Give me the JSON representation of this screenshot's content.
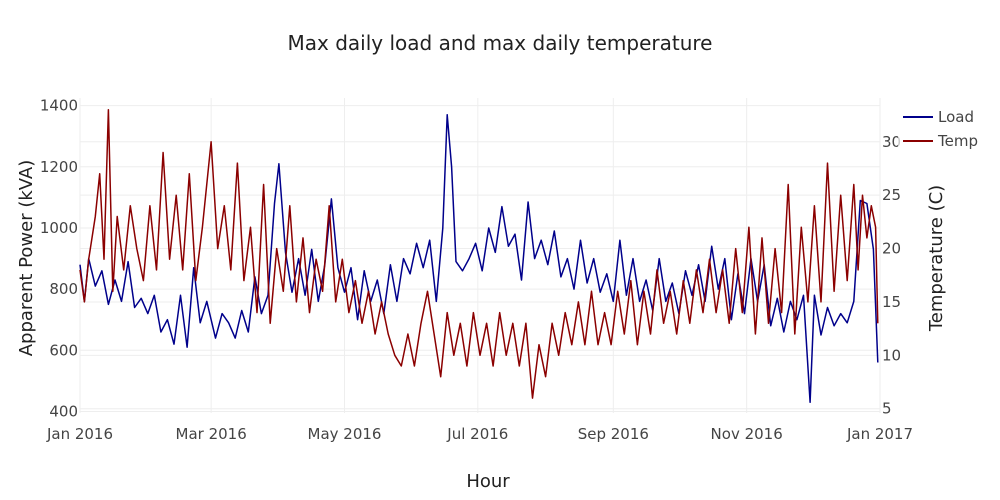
{
  "chart_data": {
    "type": "line",
    "title": "Max daily load and max daily temperature",
    "xlabel": "Hour",
    "ylabel": "Apparent Power (kVA)",
    "y2label": "Temperature (C)",
    "x_range": [
      "2016-01-01",
      "2017-01-01"
    ],
    "x_ticks": [
      "Jan 2016",
      "Mar 2016",
      "May 2016",
      "Jul 2016",
      "Sep 2016",
      "Nov 2016",
      "Jan 2017"
    ],
    "x_tick_dates": [
      "2016-01-01",
      "2016-03-01",
      "2016-05-01",
      "2016-07-01",
      "2016-09-01",
      "2016-11-01",
      "2017-01-01"
    ],
    "ylim": [
      395,
      1425
    ],
    "y_ticks": [
      400,
      600,
      800,
      1000,
      1200,
      1400
    ],
    "y2lim": [
      4.6,
      34.1
    ],
    "y2_ticks": [
      5,
      10,
      15,
      20,
      25,
      30
    ],
    "grid": true,
    "legend_position": "top-right",
    "series": [
      {
        "name": "Load",
        "axis": "left",
        "color": "#00008b",
        "points": [
          [
            "2016-01-01",
            880
          ],
          [
            "2016-01-03",
            760
          ],
          [
            "2016-01-05",
            900
          ],
          [
            "2016-01-08",
            810
          ],
          [
            "2016-01-11",
            860
          ],
          [
            "2016-01-14",
            750
          ],
          [
            "2016-01-17",
            830
          ],
          [
            "2016-01-20",
            760
          ],
          [
            "2016-01-23",
            890
          ],
          [
            "2016-01-26",
            740
          ],
          [
            "2016-01-29",
            770
          ],
          [
            "2016-02-01",
            720
          ],
          [
            "2016-02-04",
            780
          ],
          [
            "2016-02-07",
            660
          ],
          [
            "2016-02-10",
            700
          ],
          [
            "2016-02-13",
            620
          ],
          [
            "2016-02-16",
            780
          ],
          [
            "2016-02-19",
            610
          ],
          [
            "2016-02-22",
            870
          ],
          [
            "2016-02-25",
            690
          ],
          [
            "2016-02-28",
            760
          ],
          [
            "2016-03-03",
            640
          ],
          [
            "2016-03-06",
            720
          ],
          [
            "2016-03-09",
            690
          ],
          [
            "2016-03-12",
            640
          ],
          [
            "2016-03-15",
            730
          ],
          [
            "2016-03-18",
            660
          ],
          [
            "2016-03-21",
            840
          ],
          [
            "2016-03-24",
            720
          ],
          [
            "2016-03-27",
            780
          ],
          [
            "2016-03-30",
            1080
          ],
          [
            "2016-04-01",
            1210
          ],
          [
            "2016-04-04",
            920
          ],
          [
            "2016-04-07",
            790
          ],
          [
            "2016-04-10",
            900
          ],
          [
            "2016-04-13",
            780
          ],
          [
            "2016-04-16",
            930
          ],
          [
            "2016-04-19",
            760
          ],
          [
            "2016-04-22",
            880
          ],
          [
            "2016-04-25",
            1095
          ],
          [
            "2016-04-28",
            870
          ],
          [
            "2016-05-01",
            790
          ],
          [
            "2016-05-04",
            870
          ],
          [
            "2016-05-07",
            700
          ],
          [
            "2016-05-10",
            860
          ],
          [
            "2016-05-13",
            760
          ],
          [
            "2016-05-16",
            830
          ],
          [
            "2016-05-19",
            720
          ],
          [
            "2016-05-22",
            880
          ],
          [
            "2016-05-25",
            760
          ],
          [
            "2016-05-28",
            900
          ],
          [
            "2016-05-31",
            850
          ],
          [
            "2016-06-03",
            950
          ],
          [
            "2016-06-06",
            870
          ],
          [
            "2016-06-09",
            960
          ],
          [
            "2016-06-12",
            760
          ],
          [
            "2016-06-15",
            1000
          ],
          [
            "2016-06-17",
            1370
          ],
          [
            "2016-06-19",
            1200
          ],
          [
            "2016-06-21",
            890
          ],
          [
            "2016-06-24",
            860
          ],
          [
            "2016-06-27",
            900
          ],
          [
            "2016-06-30",
            950
          ],
          [
            "2016-07-03",
            860
          ],
          [
            "2016-07-06",
            1000
          ],
          [
            "2016-07-09",
            920
          ],
          [
            "2016-07-12",
            1070
          ],
          [
            "2016-07-15",
            940
          ],
          [
            "2016-07-18",
            980
          ],
          [
            "2016-07-21",
            830
          ],
          [
            "2016-07-24",
            1085
          ],
          [
            "2016-07-27",
            900
          ],
          [
            "2016-07-30",
            960
          ],
          [
            "2016-08-02",
            880
          ],
          [
            "2016-08-05",
            990
          ],
          [
            "2016-08-08",
            840
          ],
          [
            "2016-08-11",
            900
          ],
          [
            "2016-08-14",
            800
          ],
          [
            "2016-08-17",
            960
          ],
          [
            "2016-08-20",
            820
          ],
          [
            "2016-08-23",
            900
          ],
          [
            "2016-08-26",
            790
          ],
          [
            "2016-08-29",
            850
          ],
          [
            "2016-09-01",
            760
          ],
          [
            "2016-09-04",
            960
          ],
          [
            "2016-09-07",
            780
          ],
          [
            "2016-09-10",
            900
          ],
          [
            "2016-09-13",
            760
          ],
          [
            "2016-09-16",
            830
          ],
          [
            "2016-09-19",
            730
          ],
          [
            "2016-09-22",
            900
          ],
          [
            "2016-09-25",
            760
          ],
          [
            "2016-09-28",
            820
          ],
          [
            "2016-10-01",
            720
          ],
          [
            "2016-10-04",
            860
          ],
          [
            "2016-10-07",
            780
          ],
          [
            "2016-10-10",
            880
          ],
          [
            "2016-10-13",
            760
          ],
          [
            "2016-10-16",
            940
          ],
          [
            "2016-10-19",
            800
          ],
          [
            "2016-10-22",
            900
          ],
          [
            "2016-10-25",
            700
          ],
          [
            "2016-10-28",
            850
          ],
          [
            "2016-10-31",
            720
          ],
          [
            "2016-11-03",
            900
          ],
          [
            "2016-11-06",
            760
          ],
          [
            "2016-11-09",
            880
          ],
          [
            "2016-11-12",
            680
          ],
          [
            "2016-11-15",
            770
          ],
          [
            "2016-11-18",
            660
          ],
          [
            "2016-11-21",
            760
          ],
          [
            "2016-11-24",
            700
          ],
          [
            "2016-11-27",
            780
          ],
          [
            "2016-11-30",
            430
          ],
          [
            "2016-12-02",
            780
          ],
          [
            "2016-12-05",
            650
          ],
          [
            "2016-12-08",
            740
          ],
          [
            "2016-12-11",
            680
          ],
          [
            "2016-12-14",
            720
          ],
          [
            "2016-12-17",
            690
          ],
          [
            "2016-12-20",
            760
          ],
          [
            "2016-12-23",
            1090
          ],
          [
            "2016-12-26",
            1080
          ],
          [
            "2016-12-29",
            930
          ],
          [
            "2016-12-31",
            560
          ]
        ]
      },
      {
        "name": "Temp",
        "axis": "right",
        "color": "#8b0000",
        "points": [
          [
            "2016-01-01",
            18
          ],
          [
            "2016-01-03",
            15
          ],
          [
            "2016-01-05",
            19
          ],
          [
            "2016-01-08",
            23
          ],
          [
            "2016-01-10",
            27
          ],
          [
            "2016-01-12",
            19
          ],
          [
            "2016-01-14",
            33
          ],
          [
            "2016-01-16",
            16
          ],
          [
            "2016-01-18",
            23
          ],
          [
            "2016-01-21",
            18
          ],
          [
            "2016-01-24",
            24
          ],
          [
            "2016-01-27",
            20
          ],
          [
            "2016-01-30",
            17
          ],
          [
            "2016-02-02",
            24
          ],
          [
            "2016-02-05",
            18
          ],
          [
            "2016-02-08",
            29
          ],
          [
            "2016-02-11",
            19
          ],
          [
            "2016-02-14",
            25
          ],
          [
            "2016-02-17",
            18
          ],
          [
            "2016-02-20",
            27
          ],
          [
            "2016-02-23",
            17
          ],
          [
            "2016-02-26",
            22
          ],
          [
            "2016-03-01",
            30
          ],
          [
            "2016-03-04",
            20
          ],
          [
            "2016-03-07",
            24
          ],
          [
            "2016-03-10",
            18
          ],
          [
            "2016-03-13",
            28
          ],
          [
            "2016-03-16",
            17
          ],
          [
            "2016-03-19",
            22
          ],
          [
            "2016-03-22",
            14
          ],
          [
            "2016-03-25",
            26
          ],
          [
            "2016-03-28",
            13
          ],
          [
            "2016-03-31",
            20
          ],
          [
            "2016-04-03",
            16
          ],
          [
            "2016-04-06",
            24
          ],
          [
            "2016-04-09",
            15
          ],
          [
            "2016-04-12",
            21
          ],
          [
            "2016-04-15",
            14
          ],
          [
            "2016-04-18",
            19
          ],
          [
            "2016-04-21",
            16
          ],
          [
            "2016-04-24",
            24
          ],
          [
            "2016-04-27",
            15
          ],
          [
            "2016-04-30",
            19
          ],
          [
            "2016-05-03",
            14
          ],
          [
            "2016-05-06",
            17
          ],
          [
            "2016-05-09",
            13
          ],
          [
            "2016-05-12",
            16
          ],
          [
            "2016-05-15",
            12
          ],
          [
            "2016-05-18",
            15
          ],
          [
            "2016-05-21",
            12
          ],
          [
            "2016-05-24",
            10
          ],
          [
            "2016-05-27",
            9
          ],
          [
            "2016-05-30",
            12
          ],
          [
            "2016-06-02",
            9
          ],
          [
            "2016-06-05",
            13
          ],
          [
            "2016-06-08",
            16
          ],
          [
            "2016-06-11",
            12
          ],
          [
            "2016-06-14",
            8
          ],
          [
            "2016-06-17",
            14
          ],
          [
            "2016-06-20",
            10
          ],
          [
            "2016-06-23",
            13
          ],
          [
            "2016-06-26",
            9
          ],
          [
            "2016-06-29",
            14
          ],
          [
            "2016-07-02",
            10
          ],
          [
            "2016-07-05",
            13
          ],
          [
            "2016-07-08",
            9
          ],
          [
            "2016-07-11",
            14
          ],
          [
            "2016-07-14",
            10
          ],
          [
            "2016-07-17",
            13
          ],
          [
            "2016-07-20",
            9
          ],
          [
            "2016-07-23",
            13
          ],
          [
            "2016-07-26",
            6
          ],
          [
            "2016-07-29",
            11
          ],
          [
            "2016-08-01",
            8
          ],
          [
            "2016-08-04",
            13
          ],
          [
            "2016-08-07",
            10
          ],
          [
            "2016-08-10",
            14
          ],
          [
            "2016-08-13",
            11
          ],
          [
            "2016-08-16",
            15
          ],
          [
            "2016-08-19",
            11
          ],
          [
            "2016-08-22",
            16
          ],
          [
            "2016-08-25",
            11
          ],
          [
            "2016-08-28",
            14
          ],
          [
            "2016-08-31",
            11
          ],
          [
            "2016-09-03",
            16
          ],
          [
            "2016-09-06",
            12
          ],
          [
            "2016-09-09",
            17
          ],
          [
            "2016-09-12",
            11
          ],
          [
            "2016-09-15",
            16
          ],
          [
            "2016-09-18",
            12
          ],
          [
            "2016-09-21",
            18
          ],
          [
            "2016-09-24",
            13
          ],
          [
            "2016-09-27",
            16
          ],
          [
            "2016-09-30",
            12
          ],
          [
            "2016-10-03",
            17
          ],
          [
            "2016-10-06",
            13
          ],
          [
            "2016-10-09",
            18
          ],
          [
            "2016-10-12",
            14
          ],
          [
            "2016-10-15",
            19
          ],
          [
            "2016-10-18",
            14
          ],
          [
            "2016-10-21",
            18
          ],
          [
            "2016-10-24",
            13
          ],
          [
            "2016-10-27",
            20
          ],
          [
            "2016-10-30",
            14
          ],
          [
            "2016-11-02",
            22
          ],
          [
            "2016-11-05",
            12
          ],
          [
            "2016-11-08",
            21
          ],
          [
            "2016-11-11",
            13
          ],
          [
            "2016-11-14",
            20
          ],
          [
            "2016-11-17",
            14
          ],
          [
            "2016-11-20",
            26
          ],
          [
            "2016-11-23",
            12
          ],
          [
            "2016-11-26",
            22
          ],
          [
            "2016-11-29",
            15
          ],
          [
            "2016-12-02",
            24
          ],
          [
            "2016-12-05",
            15
          ],
          [
            "2016-12-08",
            28
          ],
          [
            "2016-12-11",
            16
          ],
          [
            "2016-12-14",
            25
          ],
          [
            "2016-12-17",
            17
          ],
          [
            "2016-12-20",
            26
          ],
          [
            "2016-12-22",
            18
          ],
          [
            "2016-12-24",
            25
          ],
          [
            "2016-12-26",
            21
          ],
          [
            "2016-12-28",
            24
          ],
          [
            "2016-12-30",
            22
          ],
          [
            "2016-12-31",
            13
          ]
        ]
      }
    ]
  }
}
